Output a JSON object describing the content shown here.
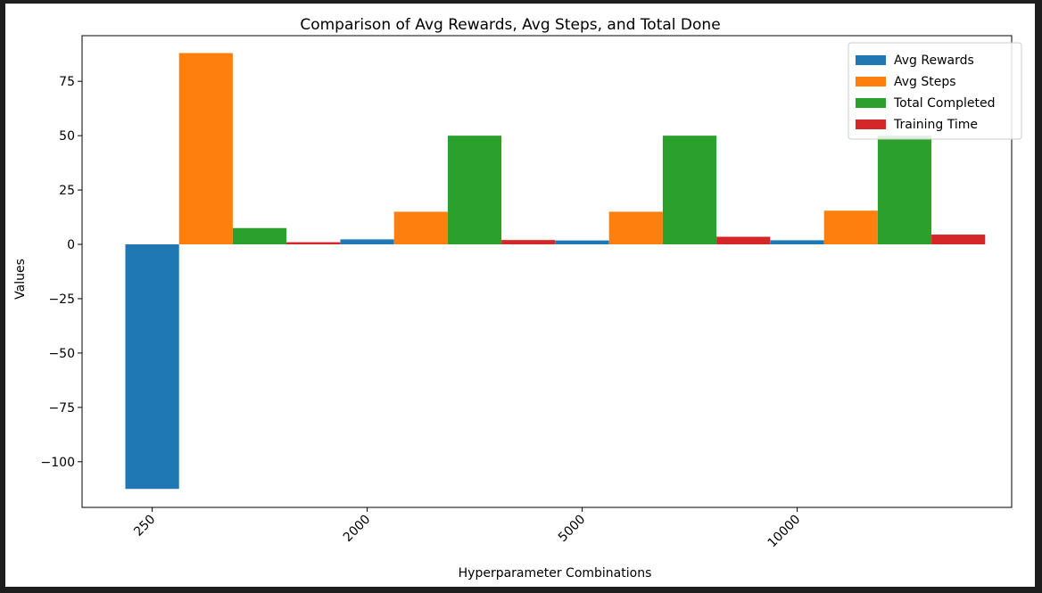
{
  "chart_data": {
    "type": "bar",
    "title": "Comparison of Avg Rewards, Avg Steps, and Total Done",
    "xlabel": "Hyperparameter Combinations",
    "ylabel": "Values",
    "categories": [
      "250",
      "2000",
      "5000",
      "10000"
    ],
    "series": [
      {
        "name": "Avg Rewards",
        "color": "#1f77b4",
        "values": [
          -112.5,
          2.3,
          1.8,
          1.9
        ]
      },
      {
        "name": "Avg Steps",
        "color": "#ff7f0e",
        "values": [
          88,
          15,
          15,
          15.5
        ]
      },
      {
        "name": "Total Completed",
        "color": "#2ca02c",
        "values": [
          7.5,
          50,
          50,
          50
        ]
      },
      {
        "name": "Training Time",
        "color": "#d62728",
        "values": [
          1.0,
          2.0,
          3.5,
          4.5
        ]
      }
    ],
    "ylim": [
      -121,
      96
    ],
    "yticks": [
      -100,
      -75,
      -50,
      -25,
      0,
      25,
      50,
      75
    ],
    "ytick_labels": [
      "−100",
      "−75",
      "−50",
      "−25",
      "0",
      "25",
      "50",
      "75"
    ],
    "grid": false,
    "legend_position": "top-right"
  }
}
